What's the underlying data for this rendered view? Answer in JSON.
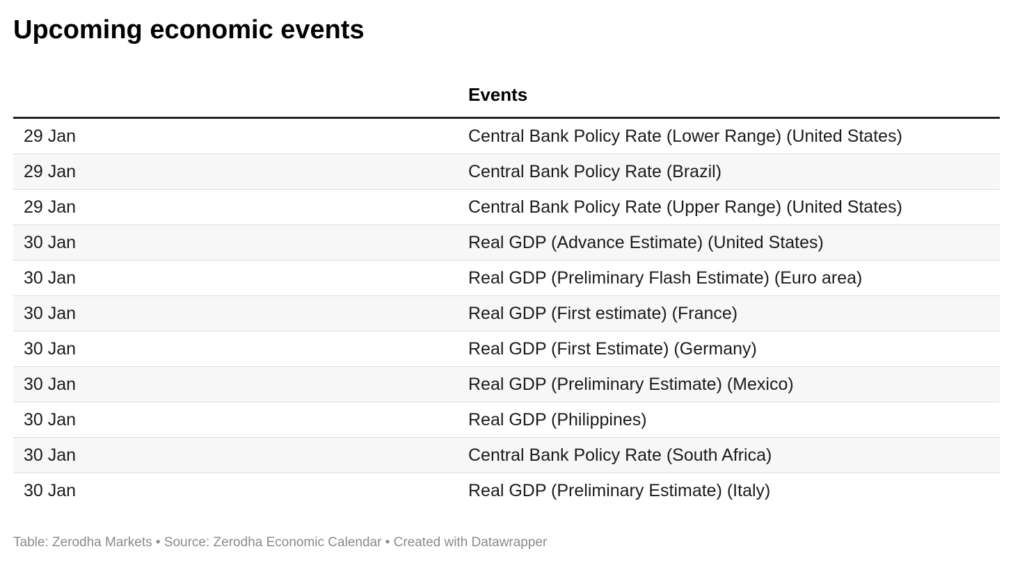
{
  "title": "Upcoming economic events",
  "chart_data": {
    "type": "table",
    "columns": [
      "",
      "Events"
    ],
    "rows": [
      {
        "date": "29 Jan",
        "event": "Central Bank Policy Rate (Lower Range) (United States)"
      },
      {
        "date": "29 Jan",
        "event": "Central Bank Policy Rate (Brazil)"
      },
      {
        "date": "29 Jan",
        "event": "Central Bank Policy Rate (Upper Range) (United States)"
      },
      {
        "date": "30 Jan",
        "event": "Real GDP (Advance Estimate) (United States)"
      },
      {
        "date": "30 Jan",
        "event": "Real GDP (Preliminary Flash Estimate) (Euro area)"
      },
      {
        "date": "30 Jan",
        "event": "Real GDP (First estimate) (France)"
      },
      {
        "date": "30 Jan",
        "event": "Real GDP (First Estimate) (Germany)"
      },
      {
        "date": "30 Jan",
        "event": "Real GDP (Preliminary Estimate) (Mexico)"
      },
      {
        "date": "30 Jan",
        "event": "Real GDP (Philippines)"
      },
      {
        "date": "30 Jan",
        "event": "Central Bank Policy Rate (South Africa)"
      },
      {
        "date": "30 Jan",
        "event": "Real GDP (Preliminary Estimate) (Italy)"
      }
    ]
  },
  "footer": "Table: Zerodha Markets • Source: Zerodha Economic Calendar • Created with Datawrapper"
}
